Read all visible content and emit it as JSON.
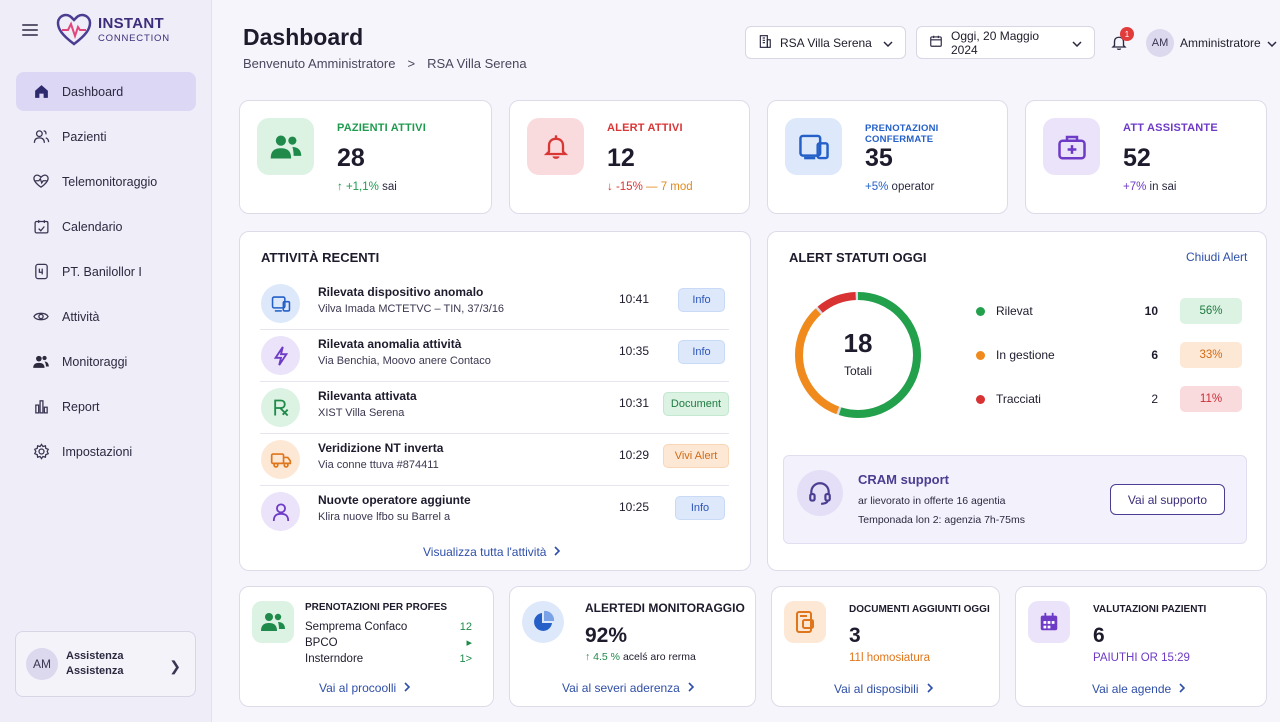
{
  "brand": {
    "line1": "INSTANT",
    "line2": "CONNECTION"
  },
  "sidebar": {
    "items": [
      {
        "label": "Dashboard",
        "icon": "home-icon",
        "active": true
      },
      {
        "label": "Pazienti",
        "icon": "users-icon"
      },
      {
        "label": "Telemonitoraggio",
        "icon": "heartbeat-icon"
      },
      {
        "label": "Calendario",
        "icon": "calendar-icon"
      },
      {
        "label": "PT. Banilollor I",
        "icon": "tablet-icon"
      },
      {
        "label": "Attività",
        "icon": "eye-icon"
      },
      {
        "label": "Monitoraggi",
        "icon": "group-icon"
      },
      {
        "label": "Report",
        "icon": "bar-chart-icon"
      },
      {
        "label": "Impostazioni",
        "icon": "gear-icon"
      }
    ],
    "support": {
      "initials": "AM",
      "line1": "Assistenza",
      "line2": "Assistenza"
    }
  },
  "header": {
    "title": "Dashboard",
    "breadcrumb": {
      "first": "Benvenuto Amministratore",
      "separator": ">",
      "second": "RSA Villa Serena"
    },
    "facility": "RSA Villa Serena",
    "date": "Oggi, 20 Maggio 2024",
    "notifications": "1",
    "user": {
      "initials": "AM",
      "name": "Amministratore"
    }
  },
  "kpis": [
    {
      "label": "PAZIENTI ATTIVI",
      "value": "28",
      "delta": "↑ +1,1%",
      "suffix": "sai",
      "label_color": "#1f9b4f",
      "delta_color": "#1f9b4f"
    },
    {
      "label": "ALERT ATTIVI",
      "value": "12",
      "delta": "↓ -15%",
      "extra": "— 7 mod",
      "label_color": "#d93636",
      "delta_color": "#d93636"
    },
    {
      "label": "PRENOTAZIONI CONFERMATE",
      "value": "35",
      "delta": "+5%",
      "suffix": "operator",
      "label_color": "#2460c7",
      "delta_color": "#2460c7"
    },
    {
      "label": "ATT ASSISTANTE",
      "value": "52",
      "delta": "+7%",
      "suffix": "in sai",
      "label_color": "#6d3bc6",
      "delta_color": "#6d3bc6"
    }
  ],
  "activity": {
    "title": "ATTIVITÀ RECENTI",
    "rows": [
      {
        "title": "Rilevata dispositivo anomalo",
        "sub": "Vilva Imada MCTETVC – TIN, 37/3/16",
        "time": "10:41",
        "tag": "Info",
        "icon": "devices-icon"
      },
      {
        "title": "Rilevata anomalia attività",
        "sub": "Via Benchia, Moovo anere Contaco",
        "time": "10:35",
        "tag": "Info",
        "icon": "bolt-icon"
      },
      {
        "title": "Rilevanta attivata",
        "sub": "XIST Villa Serena",
        "time": "10:31",
        "tag": "Document",
        "icon": "prescription-icon"
      },
      {
        "title": "Veridizione NT inverta",
        "sub": "Via conne ttuva #874411",
        "time": "10:29",
        "tag": "Vivi Alert",
        "icon": "truck-icon"
      },
      {
        "title": "Nuovte operatore aggiunte",
        "sub": "Klira nuove lfbo su Barrel a",
        "time": "10:25",
        "tag": "Info",
        "icon": "user-icon"
      }
    ],
    "link": "Visualizza tutta l'attività"
  },
  "alerts": {
    "title": "ALERT STATUTI OGGI",
    "close_link": "Chiudi Alert",
    "total": "18",
    "total_label": "Totali",
    "items": [
      {
        "name": "Rilevat",
        "count": 10,
        "pct": "56%",
        "color": "#22a04b",
        "bg": "#dcf2e3",
        "fg": "#1f7a41"
      },
      {
        "name": "In gestione",
        "count": 6,
        "pct": "33%",
        "color": "#f08a1c",
        "bg": "#fde8d6",
        "fg": "#d26a14"
      },
      {
        "name": "Tracciati",
        "count": 2,
        "pct": "11%",
        "color": "#d83232",
        "bg": "#fadbdd",
        "fg": "#c92e38"
      }
    ],
    "support": {
      "title": "CRAM support",
      "line1": "ar lievorato in offerte 16 agentia",
      "line2": "Temponada lon 2: agenzia 7h-75ms",
      "button": "Vai al supporto"
    }
  },
  "bottom": {
    "prenotazioni": {
      "title": "PRENOTAZIONI PER PROFES",
      "rows": [
        {
          "label": "Semprema Confaco",
          "value": "12"
        },
        {
          "label": "BPCO",
          "value": "▸"
        },
        {
          "label": "Insterndore",
          "value": "1>"
        }
      ],
      "link": "Vai al procoolli"
    },
    "monitoraggio": {
      "title": "ALERTEDI MONITORAGGIO",
      "value": "92%",
      "delta": "↑ 4.5 %",
      "suffix": "acelś aro rerma",
      "link": "Vai al severi aderenza"
    },
    "documenti": {
      "title": "DOCUMENTI AGGIUNTI OGGI",
      "value": "3",
      "sub": "11l homosiatura",
      "link": "Vai al disposibili"
    },
    "valutazioni": {
      "title": "VALUTAZIONI PAZIENTI",
      "value": "6",
      "sub": "PAIUTHI OR 15:29",
      "link": "Vai ale agende"
    }
  }
}
